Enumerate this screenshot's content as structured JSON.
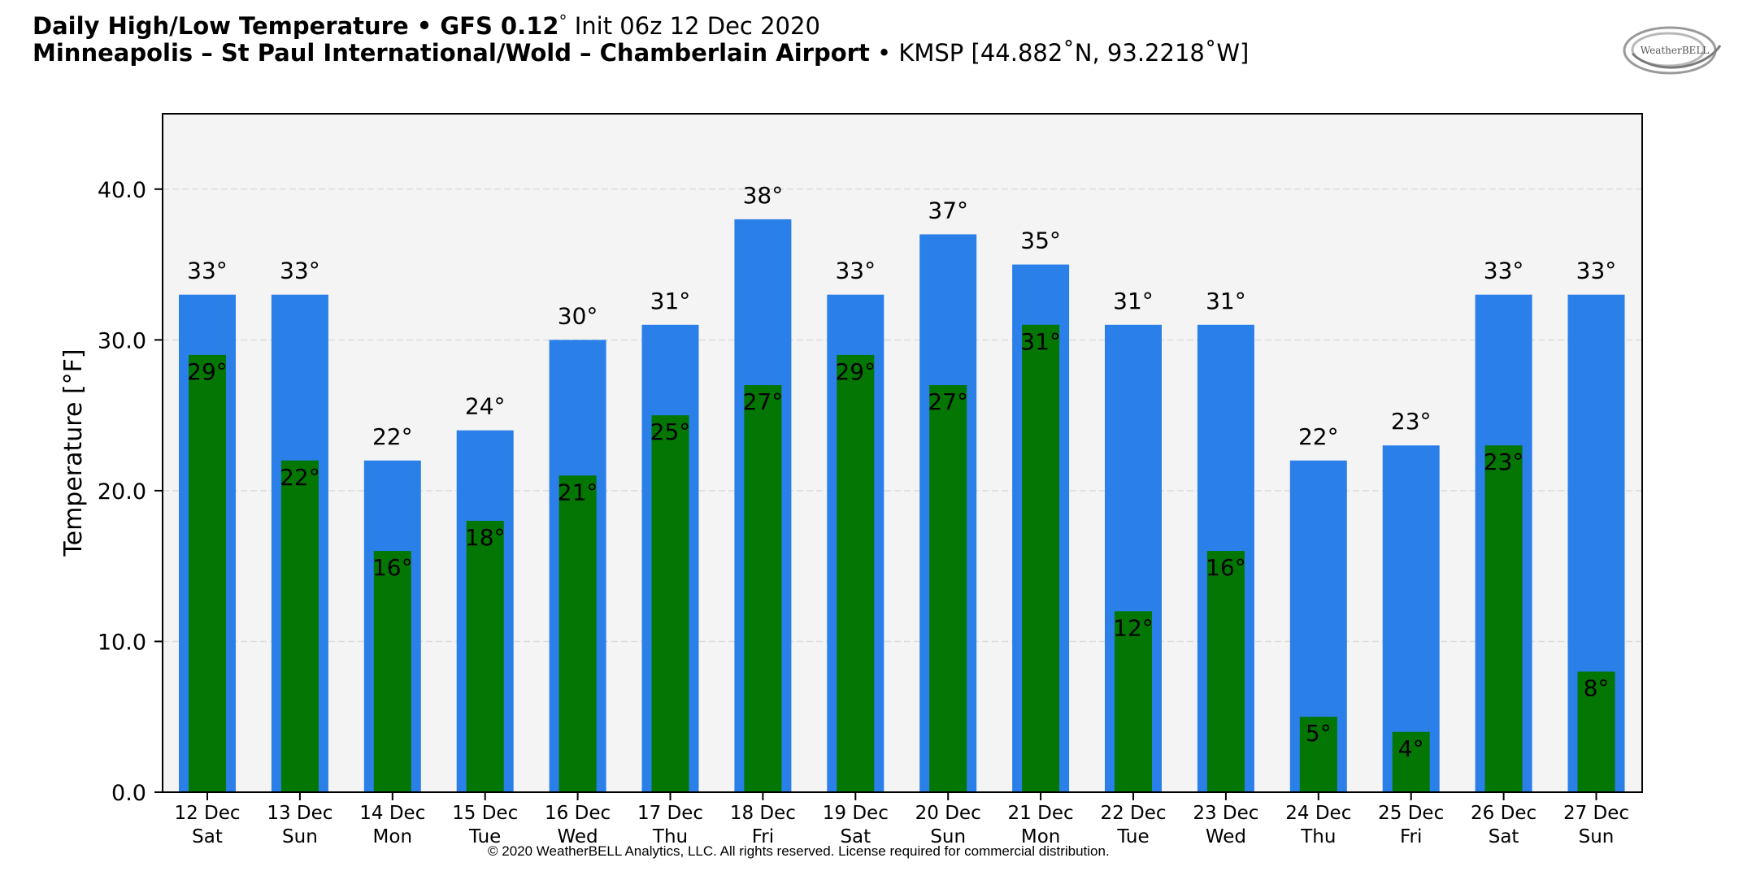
{
  "header": {
    "line1_bold": "Daily High/Low Temperature • GFS 0.12",
    "line1_deg": "°",
    "line1_rest": "Init 06z 12 Dec 2020",
    "line2_bold": "Minneapolis – St Paul International/Wold – Chamberlain Airport",
    "line2_bullet": "•",
    "line2_rest": "KMSP [44.882˚N, 93.2218˚W]"
  },
  "logo": {
    "text": "WeatherBELL",
    "icon": "weatherbell-swirl-logo"
  },
  "copyright": "© 2020 WeatherBELL Analytics, LLC. All rights reserved. License required for commercial distribution.",
  "colors": {
    "high": "#2a7fe9",
    "low": "#037603",
    "plot_bg": "#f4f4f4",
    "grid": "#dcdcdc"
  },
  "chart_data": {
    "type": "bar",
    "title": "Daily High/Low Temperature",
    "ylabel": "Temperature [°F]",
    "xlabel": "",
    "ylim": [
      0,
      45
    ],
    "yticks": [
      0,
      10,
      20,
      30,
      40
    ],
    "ytick_labels": [
      "0.0",
      "10.0",
      "20.0",
      "30.0",
      "40.0"
    ],
    "grid": true,
    "categories": [
      {
        "date": "12 Dec",
        "day": "Sat"
      },
      {
        "date": "13 Dec",
        "day": "Sun"
      },
      {
        "date": "14 Dec",
        "day": "Mon"
      },
      {
        "date": "15 Dec",
        "day": "Tue"
      },
      {
        "date": "16 Dec",
        "day": "Wed"
      },
      {
        "date": "17 Dec",
        "day": "Thu"
      },
      {
        "date": "18 Dec",
        "day": "Fri"
      },
      {
        "date": "19 Dec",
        "day": "Sat"
      },
      {
        "date": "20 Dec",
        "day": "Sun"
      },
      {
        "date": "21 Dec",
        "day": "Mon"
      },
      {
        "date": "22 Dec",
        "day": "Tue"
      },
      {
        "date": "23 Dec",
        "day": "Wed"
      },
      {
        "date": "24 Dec",
        "day": "Thu"
      },
      {
        "date": "25 Dec",
        "day": "Fri"
      },
      {
        "date": "26 Dec",
        "day": "Sat"
      },
      {
        "date": "27 Dec",
        "day": "Sun"
      }
    ],
    "series": [
      {
        "name": "High",
        "values": [
          33,
          33,
          22,
          24,
          30,
          31,
          38,
          33,
          37,
          35,
          31,
          31,
          22,
          23,
          33,
          33
        ]
      },
      {
        "name": "Low",
        "values": [
          29,
          22,
          16,
          18,
          21,
          25,
          27,
          29,
          27,
          31,
          12,
          16,
          5,
          4,
          23,
          8
        ]
      }
    ]
  }
}
